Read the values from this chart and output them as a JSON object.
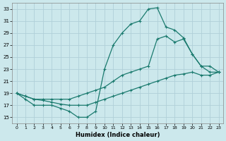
{
  "xlabel": "Humidex (Indice chaleur)",
  "bg_color": "#cce8ec",
  "grid_color": "#b0d0d8",
  "line_color": "#1a7a6e",
  "xlim": [
    -0.5,
    23.5
  ],
  "ylim": [
    14,
    34
  ],
  "xticks": [
    0,
    1,
    2,
    3,
    4,
    5,
    6,
    7,
    8,
    9,
    10,
    11,
    12,
    13,
    14,
    15,
    16,
    17,
    18,
    19,
    20,
    21,
    22,
    23
  ],
  "yticks": [
    15,
    17,
    19,
    21,
    23,
    25,
    27,
    29,
    31,
    33
  ],
  "curve1_x": [
    0,
    1,
    2,
    3,
    4,
    5,
    6,
    7,
    8,
    9,
    10,
    11,
    12,
    13,
    14,
    15,
    16,
    17,
    18,
    19,
    20,
    21,
    22,
    23
  ],
  "curve1_y": [
    19,
    18,
    17,
    17,
    17,
    16.5,
    16,
    15,
    15,
    16,
    23,
    27,
    29,
    30.5,
    31,
    33,
    33.2,
    30,
    29.5,
    28.2,
    25.5,
    23.5,
    23.5,
    22.5
  ],
  "curve2_x": [
    0,
    1,
    2,
    3,
    4,
    5,
    6,
    7,
    8,
    9,
    10,
    11,
    12,
    13,
    14,
    15,
    16,
    17,
    18,
    19,
    20,
    21,
    22,
    23
  ],
  "curve2_y": [
    19,
    18.5,
    18,
    18,
    18,
    18,
    18,
    18.5,
    19,
    19.5,
    20,
    21,
    22,
    22.5,
    23,
    23.5,
    28,
    28.5,
    27.5,
    28,
    25.5,
    23.5,
    22.5,
    22.5
  ],
  "curve3_x": [
    0,
    1,
    2,
    3,
    4,
    5,
    6,
    7,
    8,
    9,
    10,
    11,
    12,
    13,
    14,
    15,
    16,
    17,
    18,
    19,
    20,
    21,
    22,
    23
  ],
  "curve3_y": [
    19,
    18.5,
    18,
    17.8,
    17.5,
    17.2,
    17,
    17,
    17,
    17.5,
    18,
    18.5,
    19,
    19.5,
    20,
    20.5,
    21,
    21.5,
    22,
    22.2,
    22.5,
    22,
    22,
    22.5
  ]
}
